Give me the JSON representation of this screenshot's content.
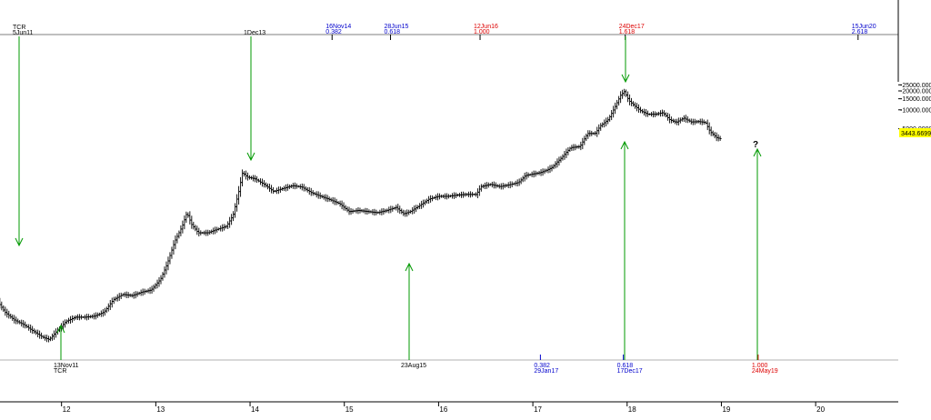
{
  "chart_data": {
    "type": "ohlc",
    "scale": "log",
    "x_axis": {
      "range": [
        2011.0,
        2021.05
      ],
      "ticks": [
        {
          "value": 2012,
          "label": "12"
        },
        {
          "value": 2013,
          "label": "13"
        },
        {
          "value": 2014,
          "label": "14"
        },
        {
          "value": 2015,
          "label": "15"
        },
        {
          "value": 2016,
          "label": "16"
        },
        {
          "value": 2017,
          "label": "17"
        },
        {
          "value": 2018,
          "label": "18"
        },
        {
          "value": 2019,
          "label": "19"
        },
        {
          "value": 2020,
          "label": "20"
        }
      ]
    },
    "y_axis": {
      "range": [
        1,
        28000
      ],
      "ticks": [
        {
          "value": 25000,
          "label": "25000.0000"
        },
        {
          "value": 20000,
          "label": "20000.0000"
        },
        {
          "value": 15000,
          "label": "15000.0000"
        },
        {
          "value": 10000,
          "label": "10000.0000"
        },
        {
          "value": 5000,
          "label": "5000.0000"
        }
      ],
      "last_price": {
        "value": 3443.6699,
        "label": "3443.6699",
        "color": "#ffff00"
      }
    },
    "price_series": [
      [
        2011.0,
        1.2
      ],
      [
        2011.05,
        3.0
      ],
      [
        2011.1,
        9.0
      ],
      [
        2011.15,
        24.0
      ],
      [
        2011.22,
        14.0
      ],
      [
        2011.3,
        10.0
      ],
      [
        2011.4,
        6.0
      ],
      [
        2011.5,
        4.5
      ],
      [
        2011.6,
        3.8
      ],
      [
        2011.7,
        3.0
      ],
      [
        2011.8,
        2.4
      ],
      [
        2011.87,
        2.2
      ],
      [
        2011.95,
        3.0
      ],
      [
        2012.05,
        4.3
      ],
      [
        2012.15,
        5.0
      ],
      [
        2012.25,
        5.0
      ],
      [
        2012.35,
        5.2
      ],
      [
        2012.45,
        6.0
      ],
      [
        2012.55,
        9.5
      ],
      [
        2012.65,
        11.5
      ],
      [
        2012.75,
        11.0
      ],
      [
        2012.85,
        12.5
      ],
      [
        2012.95,
        13.5
      ],
      [
        2013.05,
        20.0
      ],
      [
        2013.12,
        35.0
      ],
      [
        2013.2,
        80.0
      ],
      [
        2013.28,
        140.0
      ],
      [
        2013.33,
        230.0
      ],
      [
        2013.38,
        150.0
      ],
      [
        2013.45,
        110.0
      ],
      [
        2013.55,
        110.0
      ],
      [
        2013.65,
        125.0
      ],
      [
        2013.75,
        140.0
      ],
      [
        2013.82,
        210.0
      ],
      [
        2013.88,
        500.0
      ],
      [
        2013.92,
        1000.0
      ],
      [
        2013.97,
        850.0
      ],
      [
        2014.05,
        800.0
      ],
      [
        2014.15,
        650.0
      ],
      [
        2014.25,
        500.0
      ],
      [
        2014.35,
        560.0
      ],
      [
        2014.45,
        620.0
      ],
      [
        2014.55,
        590.0
      ],
      [
        2014.65,
        480.0
      ],
      [
        2014.75,
        420.0
      ],
      [
        2014.85,
        370.0
      ],
      [
        2014.95,
        320.0
      ],
      [
        2015.05,
        240.0
      ],
      [
        2015.15,
        250.0
      ],
      [
        2015.25,
        240.0
      ],
      [
        2015.35,
        230.0
      ],
      [
        2015.45,
        250.0
      ],
      [
        2015.55,
        280.0
      ],
      [
        2015.63,
        220.0
      ],
      [
        2015.7,
        240.0
      ],
      [
        2015.8,
        300.0
      ],
      [
        2015.9,
        380.0
      ],
      [
        2016.0,
        420.0
      ],
      [
        2016.1,
        420.0
      ],
      [
        2016.2,
        440.0
      ],
      [
        2016.3,
        450.0
      ],
      [
        2016.4,
        450.0
      ],
      [
        2016.45,
        600.0
      ],
      [
        2016.55,
        650.0
      ],
      [
        2016.65,
        600.0
      ],
      [
        2016.75,
        640.0
      ],
      [
        2016.85,
        700.0
      ],
      [
        2016.92,
        900.0
      ],
      [
        2017.0,
        950.0
      ],
      [
        2017.08,
        1000.0
      ],
      [
        2017.15,
        1100.0
      ],
      [
        2017.2,
        1200.0
      ],
      [
        2017.3,
        1700.0
      ],
      [
        2017.4,
        2500.0
      ],
      [
        2017.5,
        2600.0
      ],
      [
        2017.58,
        4200.0
      ],
      [
        2017.66,
        4200.0
      ],
      [
        2017.72,
        5600.0
      ],
      [
        2017.8,
        7000.0
      ],
      [
        2017.87,
        11000.0
      ],
      [
        2017.93,
        17000.0
      ],
      [
        2017.97,
        19500.0
      ],
      [
        2018.02,
        14000.0
      ],
      [
        2018.08,
        11500.0
      ],
      [
        2018.15,
        9500.0
      ],
      [
        2018.22,
        8500.0
      ],
      [
        2018.3,
        8500.0
      ],
      [
        2018.38,
        9000.0
      ],
      [
        2018.45,
        7000.0
      ],
      [
        2018.52,
        6300.0
      ],
      [
        2018.6,
        7400.0
      ],
      [
        2018.68,
        6400.0
      ],
      [
        2018.76,
        6500.0
      ],
      [
        2018.83,
        6300.0
      ],
      [
        2018.88,
        4500.0
      ],
      [
        2018.95,
        3600.0
      ],
      [
        2019.0,
        3440.0
      ]
    ],
    "time_cycles": {
      "top_markers": [
        {
          "x": 2014.87,
          "date": "16Nov14",
          "ratio": "0.382",
          "color": "#0000cc"
        },
        {
          "x": 2015.49,
          "date": "28Jun15",
          "ratio": "0.618",
          "color": "#0000cc"
        },
        {
          "x": 2016.44,
          "date": "12Jun16",
          "ratio": "1.000",
          "color": "#dd0000"
        },
        {
          "x": 2017.98,
          "date": "24Dec17",
          "ratio": "1.618",
          "color": "#dd0000"
        },
        {
          "x": 2020.45,
          "date": "15Jun20",
          "ratio": "2.618",
          "color": "#0000cc"
        }
      ],
      "bottom_markers": [
        {
          "x": 2017.08,
          "ratio": "0.382",
          "date": "29Jan17",
          "color": "#0000cc"
        },
        {
          "x": 2017.96,
          "ratio": "0.618",
          "date": "17Dec17",
          "color": "#0000cc"
        },
        {
          "x": 2019.39,
          "ratio": "1.000",
          "date": "24May19",
          "color": "#dd0000"
        }
      ]
    },
    "annotations": {
      "top_left_label": "TCR",
      "top_left_date": "5Jun11",
      "top_dec13": "1Dec13",
      "bottom_left_date": "13Nov11",
      "bottom_left_label": "TCR",
      "bottom_aug15": "23Aug15",
      "question_mark": "?"
    },
    "arrow_color": "#009900"
  }
}
